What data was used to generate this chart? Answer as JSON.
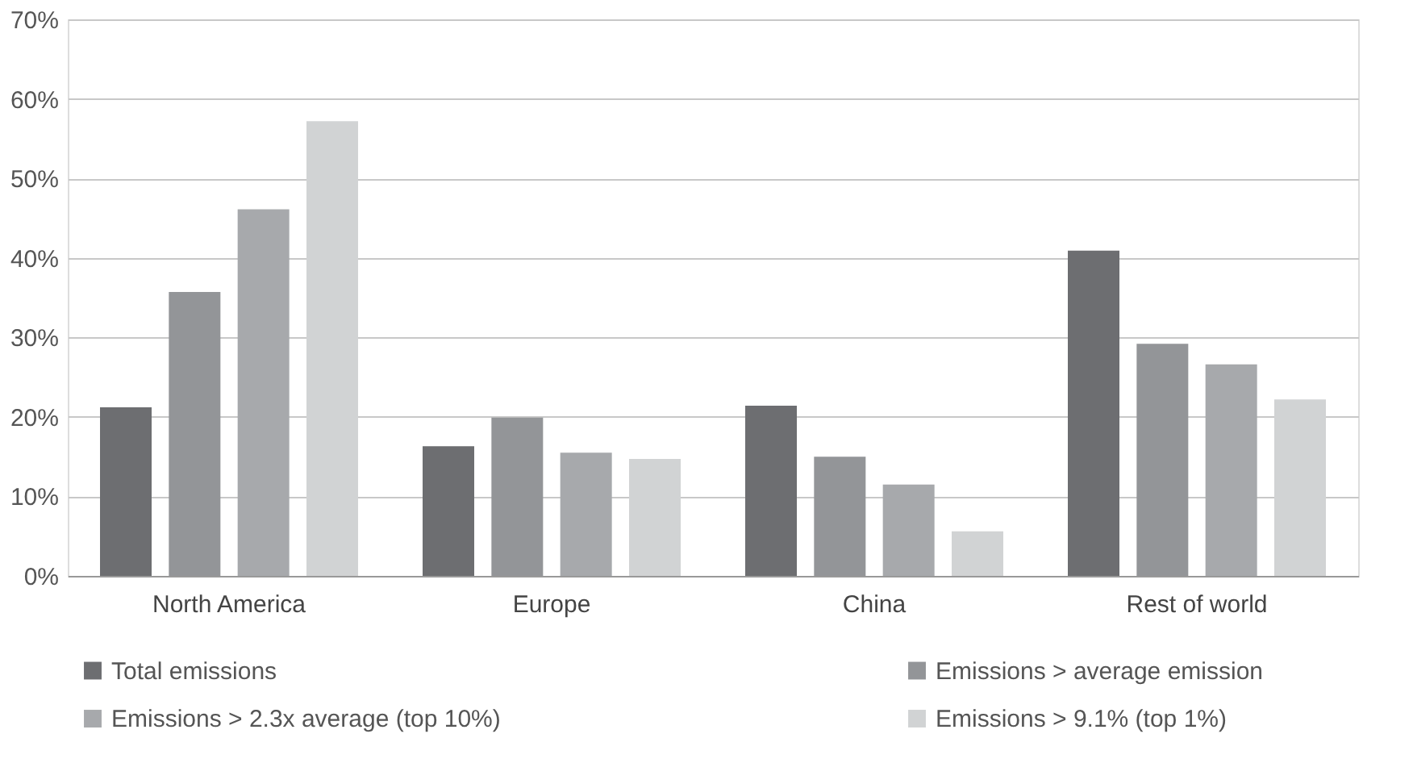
{
  "chart_data": {
    "type": "bar",
    "categories": [
      "North America",
      "Europe",
      "China",
      "Rest of world"
    ],
    "series": [
      {
        "name": "Total emissions",
        "color": "#6d6e71",
        "values": [
          21.2,
          16.3,
          21.4,
          40.9
        ]
      },
      {
        "name": "Emissions > average emission",
        "color": "#939598",
        "values": [
          35.7,
          19.9,
          15.0,
          29.2
        ]
      },
      {
        "name": "Emissions > 2.3x average (top 10%)",
        "color": "#a7a9ac",
        "values": [
          46.1,
          15.5,
          11.5,
          26.6
        ]
      },
      {
        "name": "Emissions > 9.1% (top 1%)",
        "color": "#d1d3d4",
        "values": [
          57.2,
          14.7,
          5.6,
          22.2
        ]
      }
    ],
    "ylim": [
      0,
      70
    ],
    "yticks": [
      {
        "value": 0,
        "label": "0%"
      },
      {
        "value": 10,
        "label": "10%"
      },
      {
        "value": 20,
        "label": "20%"
      },
      {
        "value": 30,
        "label": "30%"
      },
      {
        "value": 40,
        "label": "40%"
      },
      {
        "value": 50,
        "label": "50%"
      },
      {
        "value": 60,
        "label": "60%"
      },
      {
        "value": 70,
        "label": "70%"
      }
    ],
    "grid": "y",
    "legend": "bottom"
  }
}
